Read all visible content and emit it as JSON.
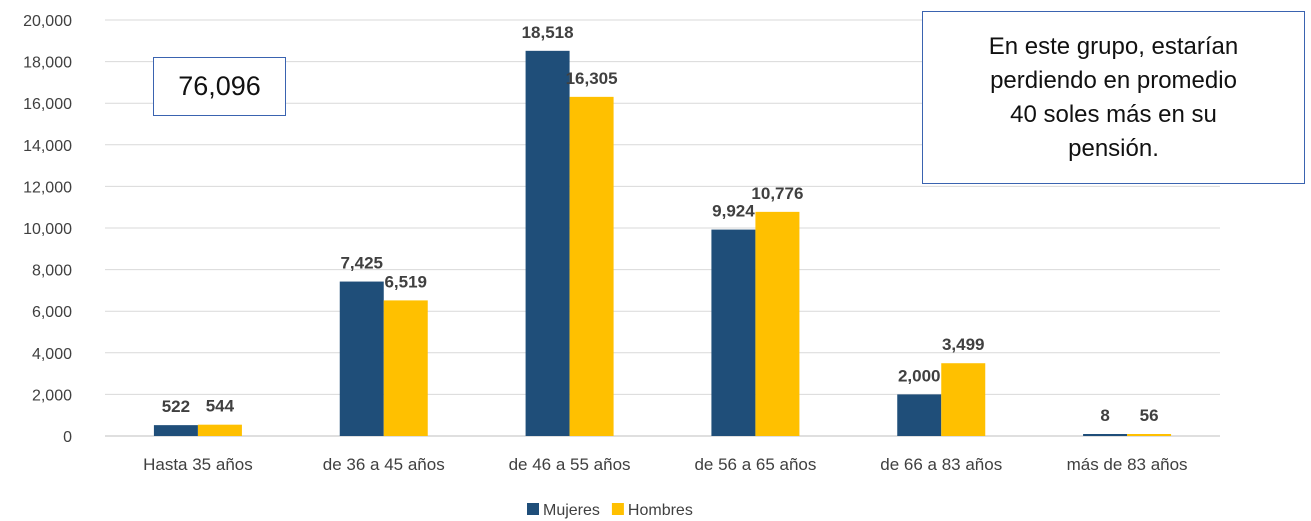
{
  "chart_data": {
    "type": "bar",
    "title": "",
    "xlabel": "",
    "ylabel": "",
    "categories": [
      "Hasta 35 años",
      "de 36 a 45 años",
      "de 46 a 55 años",
      "de 56 a 65 años",
      "de 66 a 83 años",
      "más de 83 años"
    ],
    "series": [
      {
        "name": "Mujeres",
        "color": "#1f4e79",
        "values": [
          522,
          7425,
          18518,
          9924,
          2000,
          8
        ],
        "labels": [
          "522",
          "7,425",
          "18,518",
          "9,924",
          "2,000",
          "8"
        ]
      },
      {
        "name": "Hombres",
        "color": "#ffc000",
        "values": [
          544,
          6519,
          16305,
          10776,
          3499,
          56
        ],
        "labels": [
          "544",
          "6,519",
          "16,305",
          "10,776",
          "3,499",
          "56"
        ]
      }
    ],
    "ylim": [
      0,
      20000
    ],
    "yticks": [
      0,
      2000,
      4000,
      6000,
      8000,
      10000,
      12000,
      14000,
      16000,
      18000,
      20000
    ],
    "ytick_labels": [
      "0",
      "2,000",
      "4,000",
      "6,000",
      "8,000",
      "10,000",
      "12,000",
      "14,000",
      "16,000",
      "18,000",
      "20,000"
    ],
    "grid": true,
    "legend": "bottom"
  },
  "annotations": {
    "total": "76,096",
    "note_lines": [
      "En este grupo, estarían",
      "perdiendo en promedio",
      "40 soles más en su",
      "pensión."
    ]
  }
}
